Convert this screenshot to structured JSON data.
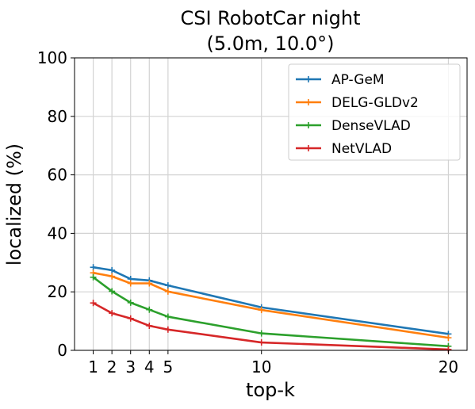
{
  "chart_data": {
    "type": "line",
    "title": "CSI RobotCar night",
    "subtitle": "(5.0m, 10.0°)",
    "xlabel": "top-k",
    "ylabel": "localized (%)",
    "x": [
      1,
      2,
      3,
      4,
      5,
      10,
      20
    ],
    "x_ticks": [
      "1",
      "2",
      "3",
      "4",
      "5",
      "10",
      "20"
    ],
    "y_ticks": [
      "0",
      "20",
      "40",
      "60",
      "80",
      "100"
    ],
    "xlim": [
      0.0,
      21.0
    ],
    "ylim": [
      0,
      100
    ],
    "grid": true,
    "legend_position": "top-right",
    "series": [
      {
        "name": "AP-GeM",
        "color": "#1f77b4",
        "values": [
          28.4,
          27.4,
          24.4,
          23.9,
          22.2,
          14.7,
          5.6
        ]
      },
      {
        "name": "DELG-GLDv2",
        "color": "#ff7f0e",
        "values": [
          26.5,
          25.3,
          22.9,
          22.9,
          20.1,
          13.8,
          4.3
        ]
      },
      {
        "name": "DenseVLAD",
        "color": "#2ca02c",
        "values": [
          25.0,
          20.2,
          16.3,
          13.9,
          11.5,
          5.8,
          1.4
        ]
      },
      {
        "name": "NetVLAD",
        "color": "#d62728",
        "values": [
          16.2,
          12.7,
          10.9,
          8.4,
          7.1,
          2.7,
          0.3
        ]
      }
    ]
  }
}
